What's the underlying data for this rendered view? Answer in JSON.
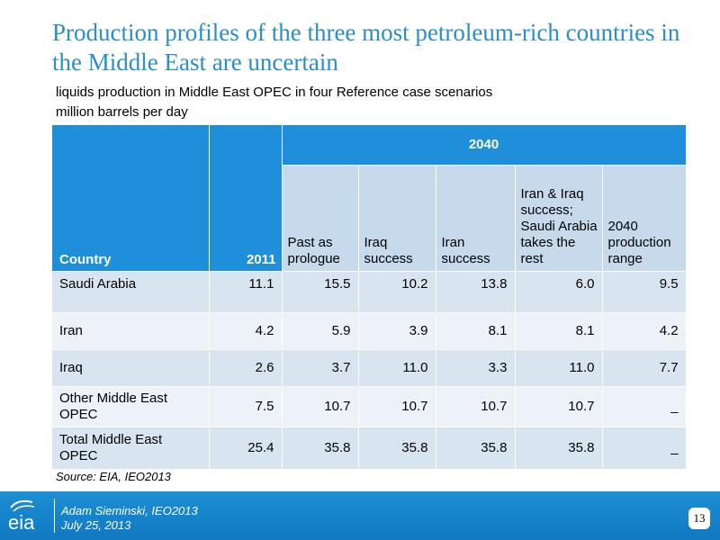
{
  "slide": {
    "title": "Production profiles of the three most petroleum-rich countries in the Middle East are uncertain",
    "subtitle_line1": "liquids production in Middle East OPEC in four Reference case scenarios",
    "subtitle_line2": "million barrels per day",
    "source": "Source:  EIA, IEO2013"
  },
  "table": {
    "col_country": "Country",
    "col_2011": "2011",
    "group_2040": "2040",
    "scenarios": [
      "Past as prologue",
      "Iraq success",
      "Iran success",
      "Iran & Iraq success; Saudi Arabia takes the rest",
      "2040 production range"
    ],
    "rows": [
      {
        "country": "Saudi Arabia",
        "y2011": "11.1",
        "past": "15.5",
        "iraq": "10.2",
        "iran": "13.8",
        "both": "6.0",
        "range": "9.5"
      },
      {
        "country": "Iran",
        "y2011": "4.2",
        "past": "5.9",
        "iraq": "3.9",
        "iran": "8.1",
        "both": "8.1",
        "range": "4.2"
      },
      {
        "country": "Iraq",
        "y2011": "2.6",
        "past": "3.7",
        "iraq": "11.0",
        "iran": "3.3",
        "both": "11.0",
        "range": "7.7"
      },
      {
        "country": "Other Middle East OPEC",
        "y2011": "7.5",
        "past": "10.7",
        "iraq": "10.7",
        "iran": "10.7",
        "both": "10.7",
        "range": "_"
      },
      {
        "country": "Total Middle East OPEC",
        "y2011": "25.4",
        "past": "35.8",
        "iraq": "35.8",
        "iran": "35.8",
        "both": "35.8",
        "range": "_"
      }
    ]
  },
  "footer": {
    "logo_text": "eia",
    "presenter": "Adam Sieminski, IEO2013",
    "date": "July 25, 2013",
    "page": "13"
  },
  "colors": {
    "title": "#2a8ec8",
    "header_dark": "#1f8fdc",
    "header_light": "#c6daec",
    "row_dark": "#d8e5f1",
    "row_light": "#ecf2f8",
    "footer": "#1584cb"
  }
}
